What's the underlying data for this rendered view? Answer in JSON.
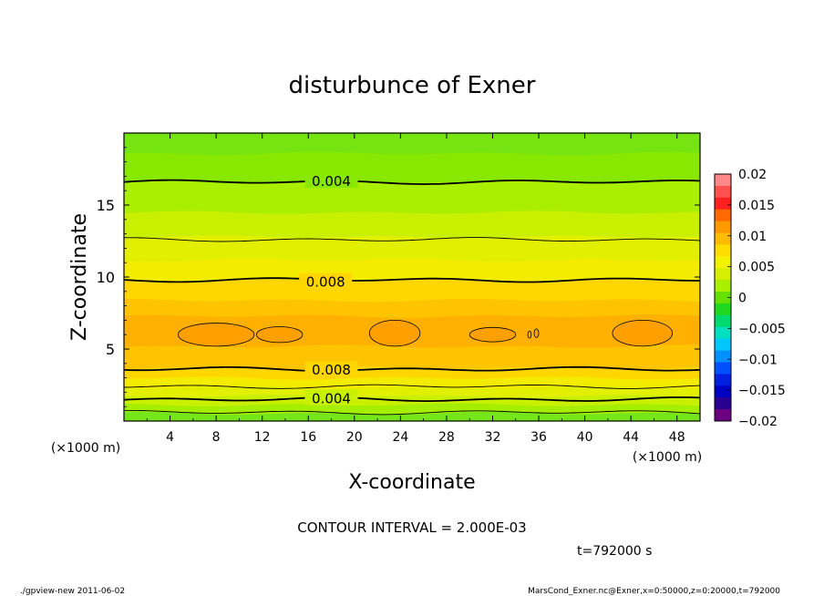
{
  "chart_data": {
    "type": "contour",
    "title": "disturbunce of Exner",
    "xlabel": "X-coordinate",
    "ylabel": "Z-coordinate",
    "x_unit": "(×1000 m)",
    "y_unit": "(×1000 m)",
    "xlim": [
      0,
      50
    ],
    "ylim": [
      0,
      20
    ],
    "x_ticks": [
      4,
      8,
      12,
      16,
      20,
      24,
      28,
      32,
      36,
      40,
      44,
      48
    ],
    "y_ticks": [
      5,
      10,
      15
    ],
    "contour_interval_text": "CONTOUR INTERVAL = 2.000E-03",
    "contour_labels": [
      {
        "x": 18,
        "z": 16.7,
        "text": "0.004"
      },
      {
        "x": 17.5,
        "z": 9.7,
        "text": "0.008"
      },
      {
        "x": 18,
        "z": 3.6,
        "text": "0.008"
      },
      {
        "x": 18,
        "z": 1.6,
        "text": "0.004"
      }
    ],
    "colorbar": {
      "levels": [
        0.02,
        0.015,
        0.01,
        0.005,
        0,
        -0.005,
        -0.01,
        -0.015,
        -0.02
      ],
      "labels": [
        "0.02",
        "0.015",
        "0.01",
        "0.005",
        "0",
        "−0.005",
        "−0.01",
        "−0.015",
        "−0.02"
      ],
      "colors": [
        "#ff8888",
        "#ff5050",
        "#ff2020",
        "#ff6a00",
        "#ff9900",
        "#ffbb00",
        "#ffdd00",
        "#f2f200",
        "#d4f000",
        "#aaee00",
        "#66e000",
        "#20d820",
        "#00d870",
        "#00e0c0",
        "#00c8ff",
        "#0090ff",
        "#0050ff",
        "#0020e0",
        "#0000c0",
        "#2a0090",
        "#6a0080"
      ]
    },
    "field_bands": [
      {
        "z": [
          0.0,
          0.55
        ],
        "value": 0.001,
        "color": "#74e61a"
      },
      {
        "z": [
          0.55,
          1.15
        ],
        "value": 0.003,
        "color": "#a6ee00"
      },
      {
        "z": [
          1.15,
          1.75
        ],
        "value": 0.005,
        "color": "#c8f000"
      },
      {
        "z": [
          1.75,
          2.35
        ],
        "value": 0.006,
        "color": "#e2f000"
      },
      {
        "z": [
          2.35,
          3.0
        ],
        "value": 0.007,
        "color": "#f4ec00"
      },
      {
        "z": [
          3.0,
          3.7
        ],
        "value": 0.008,
        "color": "#ffd600"
      },
      {
        "z": [
          3.7,
          5.2
        ],
        "value": 0.009,
        "color": "#ffc400"
      },
      {
        "z": [
          5.2,
          7.3
        ],
        "value": 0.01,
        "color": "#ffb000"
      },
      {
        "z": [
          7.3,
          8.4
        ],
        "value": 0.009,
        "color": "#ffc400"
      },
      {
        "z": [
          8.4,
          9.8
        ],
        "value": 0.008,
        "color": "#ffd600"
      },
      {
        "z": [
          9.8,
          11.2
        ],
        "value": 0.007,
        "color": "#f4ec00"
      },
      {
        "z": [
          11.2,
          12.8
        ],
        "value": 0.006,
        "color": "#e2f000"
      },
      {
        "z": [
          12.8,
          14.5
        ],
        "value": 0.005,
        "color": "#c8f000"
      },
      {
        "z": [
          14.5,
          16.6
        ],
        "value": 0.004,
        "color": "#aaee00"
      },
      {
        "z": [
          16.6,
          18.6
        ],
        "value": 0.003,
        "color": "#88e800"
      },
      {
        "z": [
          18.6,
          20.0
        ],
        "value": 0.002,
        "color": "#76e410"
      }
    ],
    "contour_lines": [
      {
        "z": 16.6,
        "value": 0.004,
        "bold": true
      },
      {
        "z": 12.6,
        "value": 0.006,
        "bold": false
      },
      {
        "z": 9.8,
        "value": 0.008,
        "bold": true
      },
      {
        "z": 3.6,
        "value": 0.008,
        "bold": true
      },
      {
        "z": 2.4,
        "value": 0.006,
        "bold": false
      },
      {
        "z": 1.5,
        "value": 0.004,
        "bold": true
      },
      {
        "z": 0.6,
        "value": 0.002,
        "bold": false
      }
    ],
    "cells": [
      {
        "cx": 8,
        "cz": 6.0,
        "rx": 3.3,
        "rz": 0.8
      },
      {
        "cx": 13.5,
        "cz": 6.0,
        "rx": 2.0,
        "rz": 0.55
      },
      {
        "cx": 23.5,
        "cz": 6.1,
        "rx": 2.2,
        "rz": 0.9
      },
      {
        "cx": 32.0,
        "cz": 6.0,
        "rx": 2.0,
        "rz": 0.5
      },
      {
        "cx": 35.2,
        "cz": 6.0,
        "rx": 0.15,
        "rz": 0.25
      },
      {
        "cx": 35.8,
        "cz": 6.1,
        "rx": 0.2,
        "rz": 0.3
      },
      {
        "cx": 45.0,
        "cz": 6.1,
        "rx": 2.6,
        "rz": 0.9
      }
    ]
  },
  "time_text": "t=792000 s",
  "footer_left": "./gpview-new  2011-06-02",
  "footer_right": "MarsCond_Exner.nc@Exner,x=0:50000,z=0:20000,t=792000"
}
